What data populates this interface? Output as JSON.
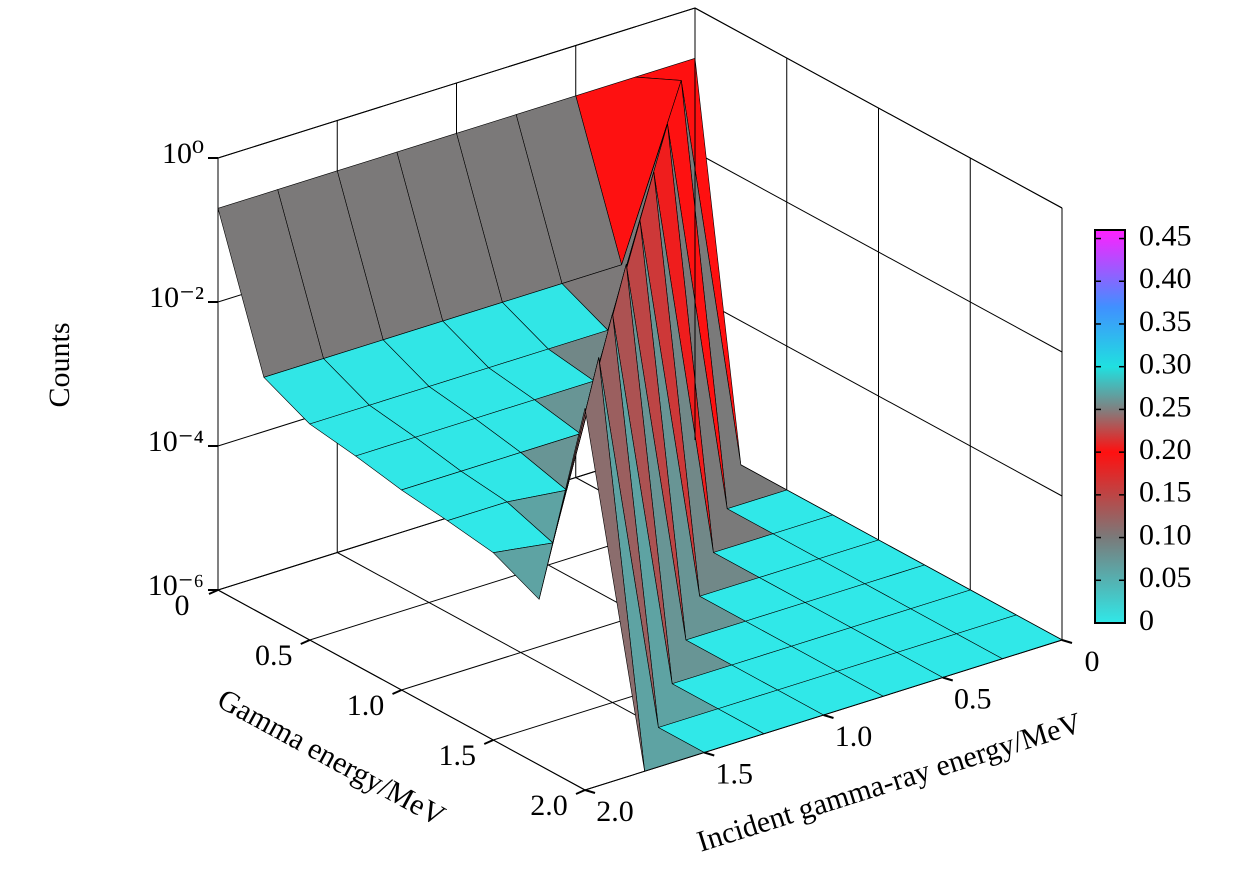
{
  "chart_data": {
    "type": "surface",
    "x_label": "Gamma energy/MeV",
    "y_label": "Incident gamma-ray energy/MeV",
    "z_label": "Counts",
    "x": [
      0,
      0.25,
      0.5,
      0.75,
      1,
      1.25,
      1.5,
      1.75,
      2
    ],
    "y": [
      0,
      0.25,
      0.5,
      0.75,
      1,
      1.25,
      1.5,
      1.75,
      2
    ],
    "z": [
      [
        0.2,
        1e-06,
        1e-06,
        1e-06,
        1e-06,
        1e-06,
        1e-06,
        1e-06,
        1e-06
      ],
      [
        0.2,
        0.4,
        1e-06,
        1e-06,
        1e-06,
        1e-06,
        1e-06,
        1e-06,
        1e-06
      ],
      [
        0.2,
        0.002,
        0.4,
        1e-06,
        1e-06,
        1e-06,
        1e-06,
        1e-06,
        1e-06
      ],
      [
        0.2,
        0.002,
        0.001,
        0.35,
        1e-06,
        1e-06,
        1e-06,
        1e-06,
        1e-06
      ],
      [
        0.2,
        0.002,
        0.001,
        0.0008,
        0.3,
        1e-06,
        1e-06,
        1e-06,
        1e-06
      ],
      [
        0.2,
        0.002,
        0.001,
        0.0008,
        0.0006,
        0.3,
        1e-06,
        1e-06,
        1e-06
      ],
      [
        0.2,
        0.002,
        0.001,
        0.0008,
        0.0006,
        0.0004,
        0.25,
        1e-06,
        1e-06
      ],
      [
        0.2,
        0.002,
        0.001,
        0.0008,
        0.0006,
        0.0005,
        0.0003,
        0.25,
        1e-06
      ],
      [
        0.2,
        0.002,
        0.001,
        0.0008,
        0.0006,
        0.0005,
        0.0004,
        0.0002,
        0.2
      ]
    ],
    "xlim": [
      0,
      2
    ],
    "ylim": [
      0,
      2
    ],
    "zlim": [
      1e-06,
      1
    ],
    "zscale": "log",
    "xticks": [
      0,
      0.5,
      {
        "value": 1,
        "label": "1.0"
      },
      1.5,
      {
        "value": 2,
        "label": "2.0"
      }
    ],
    "yticks": [
      0,
      0.5,
      {
        "value": 1,
        "label": "1.0"
      },
      1.5,
      {
        "value": 2,
        "label": "2.0"
      }
    ],
    "zticks": [
      {
        "value": 1e-06,
        "label": "10⁻⁶"
      },
      {
        "value": 0.0001,
        "label": "10⁻⁴"
      },
      {
        "value": 0.01,
        "label": "10⁻²"
      },
      {
        "value": 1,
        "label": "10⁰"
      }
    ],
    "clim": [
      0,
      0.46
    ],
    "cticks": [
      0,
      0.05,
      {
        "value": 0.1,
        "label": "0.10"
      },
      0.15,
      {
        "value": 0.2,
        "label": "0.20"
      },
      0.25,
      {
        "value": 0.3,
        "label": "0.30"
      },
      0.35,
      {
        "value": 0.4,
        "label": "0.40"
      },
      0.45
    ],
    "colormap": [
      {
        "value": 0,
        "color": "#30e8e8"
      },
      {
        "value": 0.1,
        "color": "#7a7a7a"
      },
      {
        "value": 0.2,
        "color": "#ff1010"
      },
      {
        "value": 0.25,
        "color": "#808080"
      },
      {
        "value": 0.3,
        "color": "#20e0e0"
      },
      {
        "value": 0.37,
        "color": "#4090ff"
      },
      {
        "value": 0.46,
        "color": "#ff20ff"
      }
    ],
    "grid": true
  }
}
